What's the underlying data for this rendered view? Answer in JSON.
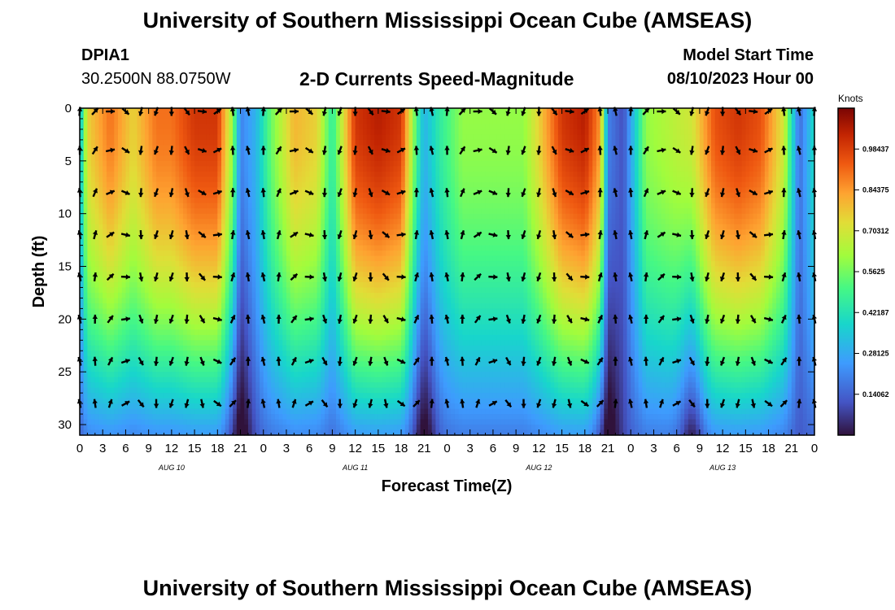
{
  "header": {
    "title": "University of Southern Mississippi Ocean Cube (AMSEAS)",
    "station": "DPIA1",
    "coords": "30.2500N  88.0750W",
    "subtitle": "2-D Currents Speed-Magnitude",
    "start_label": "Model Start Time",
    "start_value": "08/10/2023 Hour 00"
  },
  "footer": {
    "title": "University of Southern Mississippi Ocean Cube (AMSEAS)"
  },
  "chart_data": {
    "type": "heatmap",
    "title": "2-D Currents Speed-Magnitude",
    "xlabel": "Forecast Time(Z)",
    "ylabel": "Depth (ft)",
    "x_range_hours": [
      0,
      96
    ],
    "y_range_ft": [
      0,
      31
    ],
    "x_tick_labels": [
      "0",
      "3",
      "6",
      "9",
      "12",
      "15",
      "18",
      "21",
      "0",
      "3",
      "6",
      "9",
      "12",
      "15",
      "18",
      "21",
      "0",
      "3",
      "6",
      "9",
      "12",
      "15",
      "18",
      "21",
      "0",
      "3",
      "6",
      "9",
      "12",
      "15",
      "18",
      "21",
      "0"
    ],
    "y_ticks": [
      0,
      5,
      10,
      15,
      20,
      25,
      30
    ],
    "day_labels": [
      {
        "label": "AUG 10",
        "hour": 12
      },
      {
        "label": "AUG 11",
        "hour": 36
      },
      {
        "label": "AUG 12",
        "hour": 60
      },
      {
        "label": "AUG 13",
        "hour": 84
      }
    ],
    "colorbar": {
      "unit": "Knots",
      "range": [
        0,
        1.125
      ],
      "tick_labels": [
        "0.98437",
        "0.84375",
        "0.70312",
        "0.5625",
        "0.42187",
        "0.28125",
        "0.14062"
      ],
      "tick_values": [
        0.98437,
        0.84375,
        0.70312,
        0.5625,
        0.42187,
        0.28125,
        0.14062
      ]
    },
    "surface_speed_profile": {
      "hours": [
        0,
        1,
        4,
        7,
        10,
        12,
        15,
        18,
        20,
        21,
        23,
        25,
        28,
        31,
        33,
        36,
        39,
        42,
        44,
        45,
        47,
        50,
        54,
        58,
        60,
        63,
        66,
        68,
        69,
        71,
        74,
        77,
        80,
        83,
        86,
        89,
        92,
        94,
        96
      ],
      "speeds": [
        0.3,
        0.75,
        0.9,
        0.75,
        0.9,
        0.9,
        1.0,
        1.0,
        0.6,
        0.2,
        0.3,
        0.55,
        0.8,
        0.75,
        0.45,
        1.0,
        1.05,
        1.0,
        0.5,
        0.3,
        0.45,
        0.6,
        0.6,
        0.6,
        0.75,
        1.0,
        1.05,
        0.85,
        0.2,
        0.1,
        0.6,
        0.65,
        0.7,
        0.95,
        1.0,
        0.95,
        0.7,
        0.15,
        0.4
      ]
    },
    "deep_minima_hours": [
      21,
      45,
      69,
      80
    ],
    "vector_depths_ft": [
      0,
      4,
      8,
      12,
      16,
      20,
      24,
      28
    ],
    "vector_hours_step": 2
  }
}
